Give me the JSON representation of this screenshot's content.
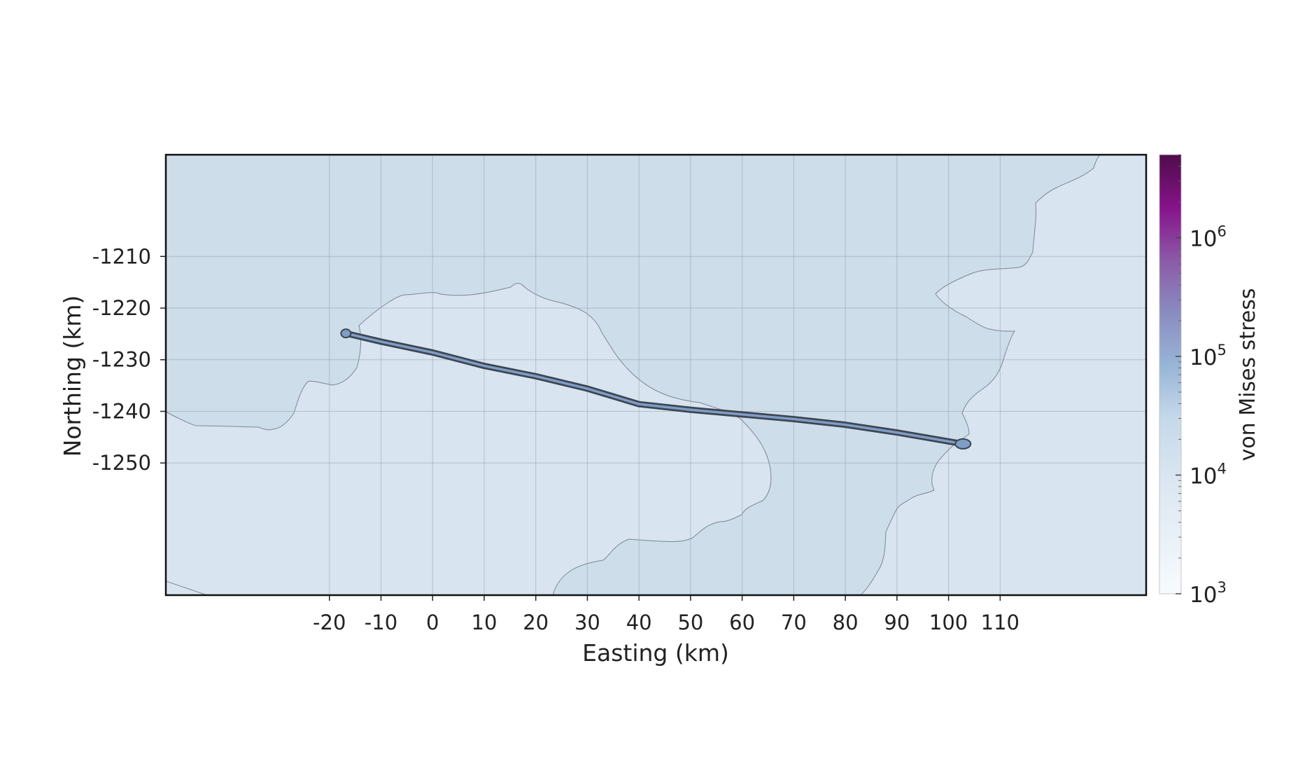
{
  "map": {
    "xlabel": "Easting (km)",
    "ylabel": "Northing (km)",
    "x_ticks": [
      -20,
      -10,
      0,
      10,
      20,
      30,
      40,
      50,
      60,
      70,
      80,
      90,
      100,
      110
    ],
    "y_ticks": [
      -1210,
      -1220,
      -1230,
      -1240,
      -1250
    ],
    "xlim": [
      -51.7,
      138.3
    ],
    "ylim": [
      -1275.6,
      -1190.3
    ],
    "colorbar": {
      "label": "von Mises stress",
      "scale": "log",
      "range": [
        1000,
        5000000
      ],
      "ticks": [
        {
          "base": "10",
          "exp": "3"
        },
        {
          "base": "10",
          "exp": "4"
        },
        {
          "base": "10",
          "exp": "5"
        },
        {
          "base": "10",
          "exp": "6"
        }
      ],
      "colors": [
        "#f7fbfd",
        "#c5d9ea",
        "#98b5d6",
        "#8a8cc0",
        "#8b5aa8",
        "#87128a",
        "#4f0c4b"
      ]
    },
    "colors": {
      "ice_shelf": "#cddde9",
      "region_light": "#d8e4ef",
      "coastline": "#7c8794",
      "grid": "#8f9aa6",
      "track_outline": "#3e4652",
      "track_fill": "#7f9dc6"
    },
    "track": [
      [
        -16.8,
        -1224.9
      ],
      [
        -10,
        -1226.5
      ],
      [
        0,
        -1228.6
      ],
      [
        10,
        -1231.2
      ],
      [
        20,
        -1233.2
      ],
      [
        30,
        -1235.6
      ],
      [
        40,
        -1238.6
      ],
      [
        50,
        -1239.7
      ],
      [
        60,
        -1240.6
      ],
      [
        70,
        -1241.5
      ],
      [
        80,
        -1242.6
      ],
      [
        90,
        -1244.1
      ],
      [
        102.8,
        -1246.3
      ]
    ]
  }
}
